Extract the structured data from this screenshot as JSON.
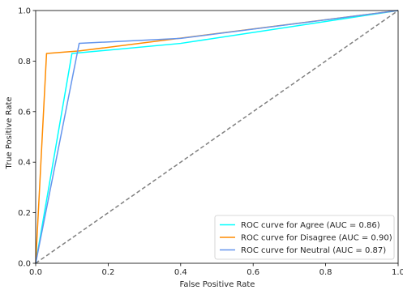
{
  "chart_data": {
    "type": "line",
    "title": "",
    "xlabel": "False Positive Rate",
    "ylabel": "True Positive Rate",
    "xlim": [
      0.0,
      1.0
    ],
    "ylim": [
      0.0,
      1.0
    ],
    "xticks": [
      "0.0",
      "0.2",
      "0.4",
      "0.6",
      "0.8",
      "1.0"
    ],
    "yticks": [
      "0.0",
      "0.2",
      "0.4",
      "0.6",
      "0.8",
      "1.0"
    ],
    "grid": false,
    "legend_position": "lower right",
    "series": [
      {
        "name": "ROC curve for Agree (AUC = 0.86)",
        "color": "#00ffff",
        "x": [
          0.0,
          0.1,
          0.4,
          1.0
        ],
        "y": [
          0.0,
          0.83,
          0.87,
          1.0
        ]
      },
      {
        "name": "ROC curve for Disagree (AUC = 0.90)",
        "color": "#ff8c00",
        "x": [
          0.0,
          0.03,
          0.12,
          1.0
        ],
        "y": [
          0.0,
          0.83,
          0.84,
          1.0
        ]
      },
      {
        "name": "ROC curve for Neutral (AUC = 0.87)",
        "color": "#6495ed",
        "x": [
          0.0,
          0.12,
          0.4,
          1.0
        ],
        "y": [
          0.0,
          0.87,
          0.89,
          1.0
        ]
      }
    ],
    "reference_line": {
      "style": "dashed",
      "color": "#808080",
      "x": [
        0.0,
        1.0
      ],
      "y": [
        0.0,
        1.0
      ]
    }
  }
}
